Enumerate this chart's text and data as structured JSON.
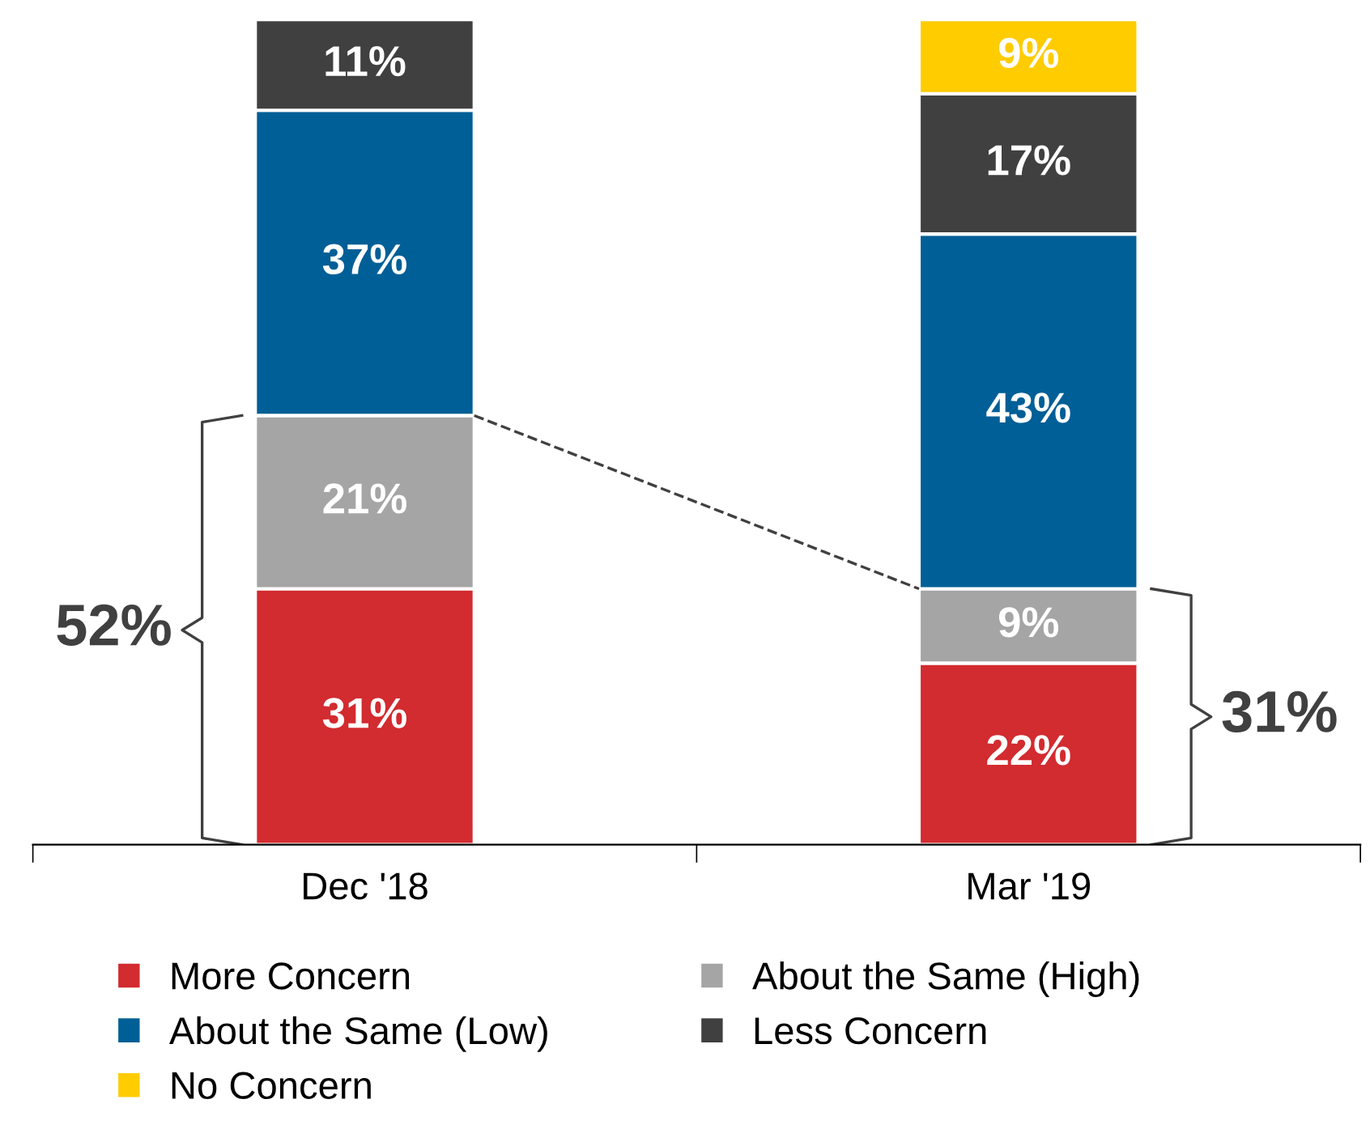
{
  "chart_data": {
    "type": "bar",
    "stacked": true,
    "legend": "bottom",
    "grid": false,
    "categories": [
      "Dec '18",
      "Mar '19"
    ],
    "series": [
      {
        "name": "More Concern",
        "color": "#d22b30",
        "values": [
          31,
          22
        ],
        "value_labels": [
          "31%",
          "22%"
        ]
      },
      {
        "name": "About the Same (High)",
        "color": "#a5a5a5",
        "values": [
          21,
          9
        ],
        "value_labels": [
          "21%",
          "9%"
        ]
      },
      {
        "name": "About the Same (Low)",
        "color": "#005f96",
        "values": [
          37,
          43
        ],
        "value_labels": [
          "37%",
          "43%"
        ]
      },
      {
        "name": "Less Concern",
        "color": "#404040",
        "values": [
          11,
          17
        ],
        "value_labels": [
          "11%",
          "17%"
        ]
      },
      {
        "name": "No Concern",
        "color": "#ffcc00",
        "values": [
          null,
          9
        ],
        "value_labels": [
          null,
          "9%"
        ]
      }
    ],
    "annotations": [
      "52%",
      "31%"
    ]
  }
}
